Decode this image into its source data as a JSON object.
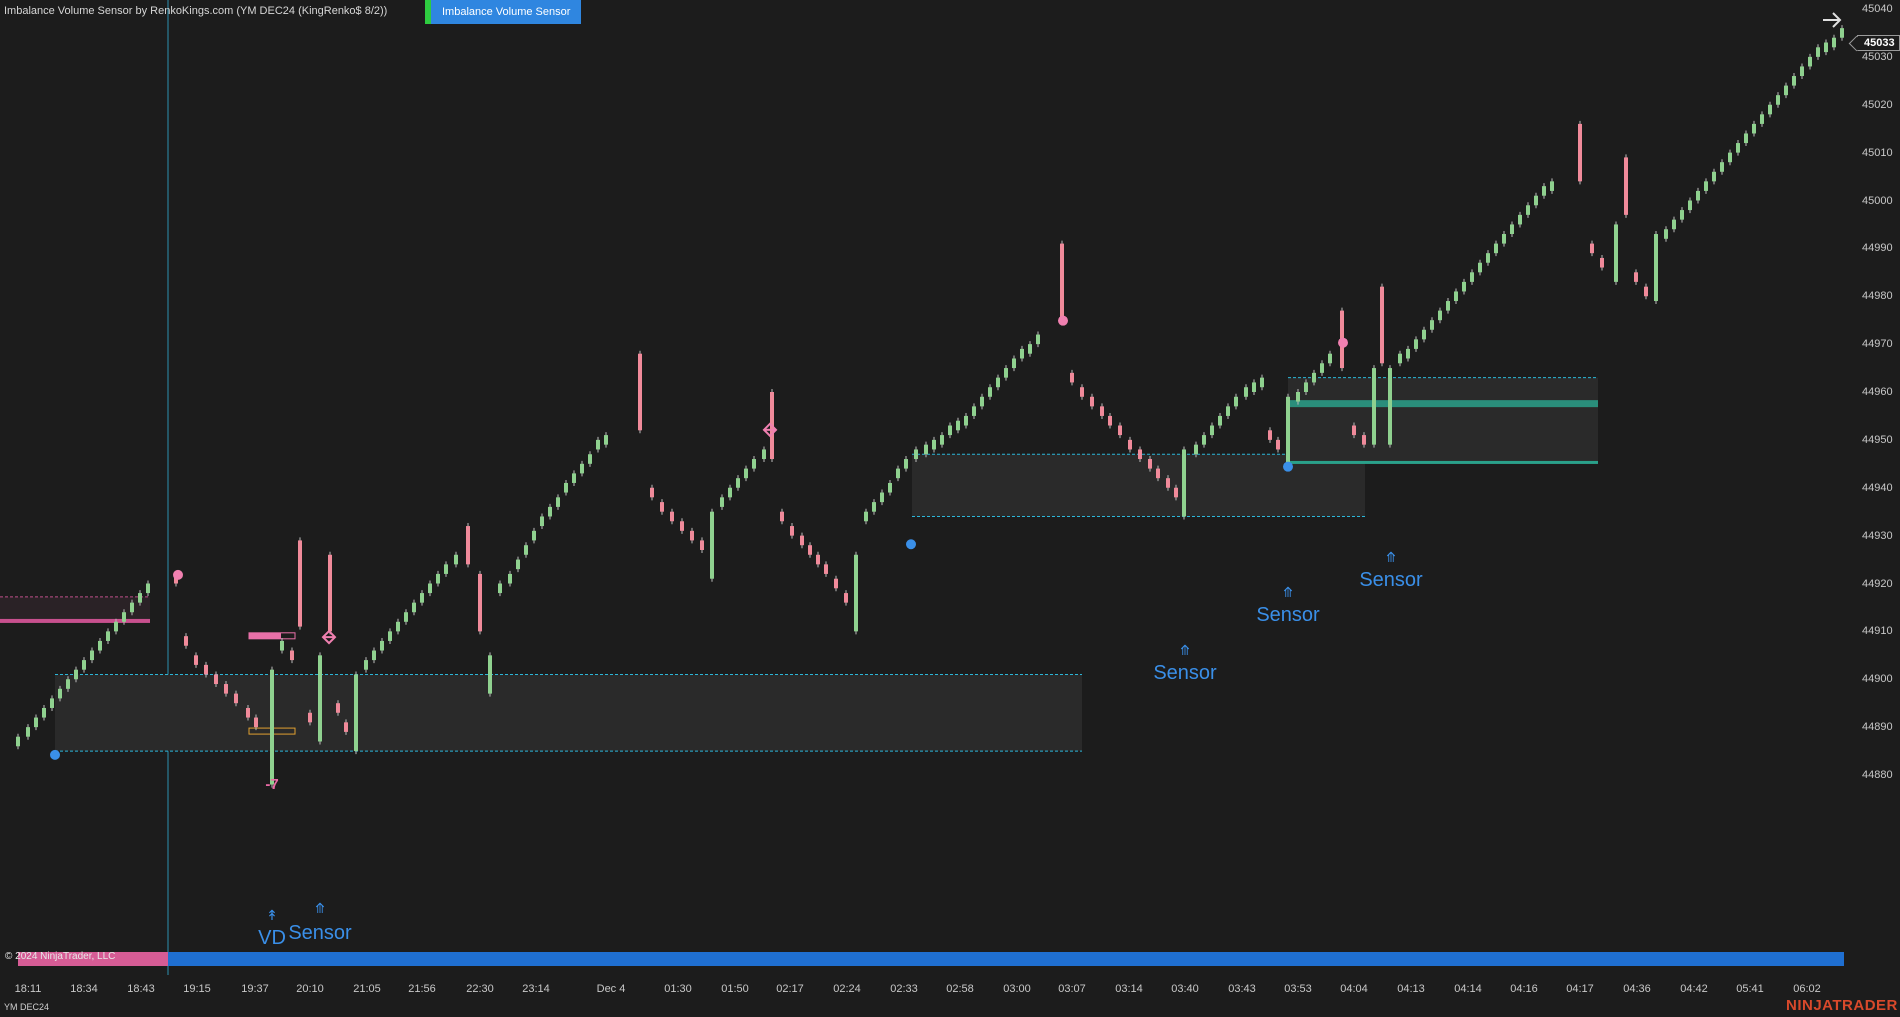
{
  "header": {
    "chart_title": "Imbalance Volume Sensor by RenkoKings.com (YM DEC24 (KingRenko$ 8/2))",
    "indicator_tag": "Imbalance Volume Sensor"
  },
  "colors": {
    "background": "#1c1c1c",
    "up_candle": "#8fd18f",
    "down_candle": "#f08a9a",
    "zone_line": "#2bb6d8",
    "signal_blue": "#3a8fe8",
    "signal_pink": "#f080b0",
    "teal_band": "#2aa08a",
    "brand": "#d9492b"
  },
  "icons": {
    "navigate": "arrow-right-icon"
  },
  "price_axis": {
    "ticks": [
      "45040",
      "45030",
      "45020",
      "45010",
      "45000",
      "44990",
      "44980",
      "44970",
      "44960",
      "44950",
      "44940",
      "44930",
      "44920",
      "44910",
      "44900",
      "44890",
      "44880"
    ],
    "current_price": "45033"
  },
  "time_axis": {
    "ticks": [
      "18:11",
      "18:34",
      "18:43",
      "19:15",
      "19:37",
      "20:10",
      "21:05",
      "21:56",
      "22:30",
      "23:14",
      "Dec 4",
      "01:30",
      "01:50",
      "02:17",
      "02:24",
      "02:33",
      "02:58",
      "03:00",
      "03:07",
      "03:14",
      "03:40",
      "03:43",
      "03:53",
      "04:04",
      "04:13",
      "04:14",
      "04:16",
      "04:17",
      "04:36",
      "04:42",
      "05:41",
      "06:02"
    ]
  },
  "signals": {
    "vd_label": "VD",
    "sensor_label": "Sensor",
    "delta_value": "-7"
  },
  "footer": {
    "copyright": "© 2024 NinjaTrader, LLC",
    "instrument": "YM DEC24",
    "brand": "NINJATRADER"
  }
}
